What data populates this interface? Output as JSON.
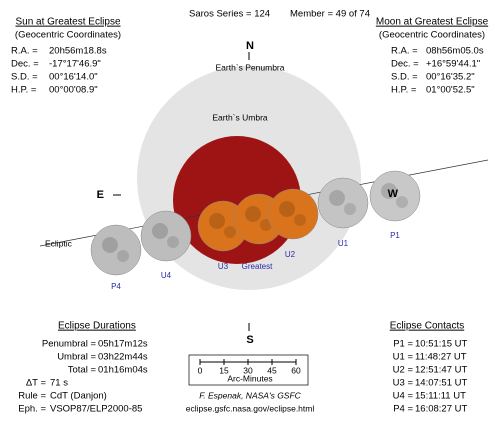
{
  "header": {
    "saros": "Saros Series = 124",
    "member": "Member = 49 of 74"
  },
  "sun": {
    "title": "Sun at Greatest Eclipse",
    "subtitle": "(Geocentric Coordinates)",
    "rows": [
      [
        "R.A. =",
        "20h56m18.8s"
      ],
      [
        "Dec. =",
        "-17°17'46.9\""
      ],
      [
        "S.D. =",
        "00°16'14.0\""
      ],
      [
        "H.P. =",
        "00°00'08.9\""
      ]
    ]
  },
  "moon": {
    "title": "Moon at Greatest Eclipse",
    "subtitle": "(Geocentric Coordinates)",
    "rows": [
      [
        "R.A. =",
        "08h56m05.0s"
      ],
      [
        "Dec. =",
        "+16°59'44.1\""
      ],
      [
        "S.D. =",
        "00°16'35.2\""
      ],
      [
        "H.P. =",
        "01°00'52.5\""
      ]
    ]
  },
  "diagram": {
    "north": "N",
    "south": "S",
    "east": "E",
    "west": "W",
    "penumbra": "Earth`s Penumbra",
    "umbra": "Earth`s Umbra",
    "ecliptic": "Ecliptic",
    "positions": [
      "P4",
      "U4",
      "U3",
      "Greatest",
      "U2",
      "U1",
      "P1"
    ]
  },
  "durations": {
    "title": "Eclipse Durations",
    "rows": [
      [
        "Penumbral =",
        "05h17m12s"
      ],
      [
        "Umbral =",
        "03h22m44s"
      ],
      [
        "Total =",
        "01h16m04s"
      ]
    ]
  },
  "parameters": [
    [
      "ΔT =",
      "71 s"
    ],
    [
      "Rule =",
      "CdT (Danjon)"
    ],
    [
      "Eph. =",
      "VSOP87/ELP2000-85"
    ]
  ],
  "scale": {
    "ticks": [
      "0",
      "15",
      "30",
      "45",
      "60"
    ],
    "label": "Arc-Minutes"
  },
  "credit": {
    "author": "F. Espenak, NASA's GSFC",
    "url": "eclipse.gsfc.nasa.gov/eclipse.html"
  },
  "contacts": {
    "title": "Eclipse Contacts",
    "rows": [
      [
        "P1 =",
        "10:51:15 UT"
      ],
      [
        "U1 =",
        "11:48:27 UT"
      ],
      [
        "U2 =",
        "12:51:47 UT"
      ],
      [
        "U3 =",
        "14:07:51 UT"
      ],
      [
        "U4 =",
        "15:11:11 UT"
      ],
      [
        "P4 =",
        "16:08:27 UT"
      ]
    ]
  }
}
